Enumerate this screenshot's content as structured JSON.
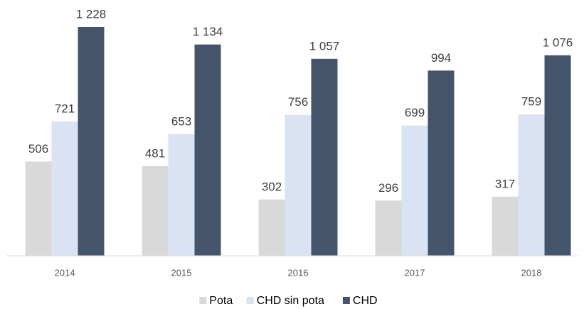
{
  "chart_data": {
    "type": "bar",
    "categories": [
      "2014",
      "2015",
      "2016",
      "2017",
      "2018"
    ],
    "series": [
      {
        "name": "Pota",
        "color": "#d9d9d9",
        "values": [
          506,
          481,
          302,
          296,
          317
        ]
      },
      {
        "name": "CHD sin pota",
        "color": "#dae3f3",
        "values": [
          721,
          653,
          756,
          699,
          759
        ]
      },
      {
        "name": "CHD",
        "color": "#44546a",
        "values": [
          1228,
          1134,
          1057,
          994,
          1076
        ],
        "value_labels": [
          "1 228",
          "1 134",
          "1 057",
          "994",
          "1 076"
        ]
      }
    ],
    "legend": "bottom"
  }
}
